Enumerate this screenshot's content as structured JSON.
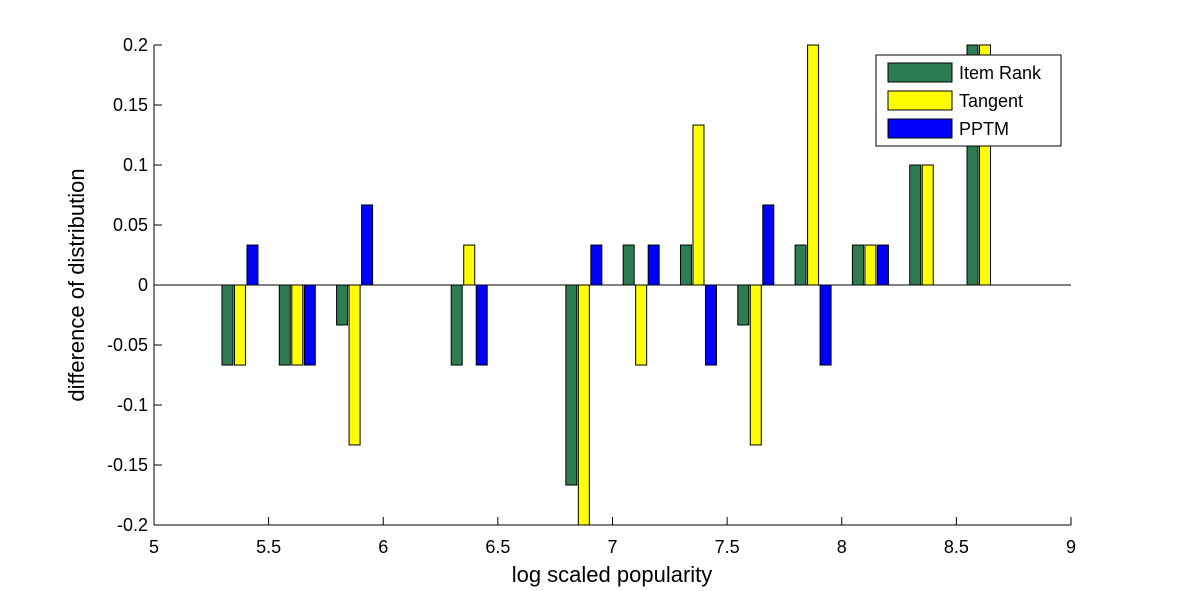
{
  "chart_data": {
    "type": "bar",
    "title": "",
    "xlabel": "log scaled popularity",
    "ylabel": "difference of distribution",
    "xlim": [
      5,
      9
    ],
    "ylim": [
      -0.2,
      0.2
    ],
    "xticks": [
      "5",
      "5.5",
      "6",
      "6.5",
      "7",
      "7.5",
      "8",
      "8.5",
      "9"
    ],
    "yticks": [
      "-0.2",
      "-0.15",
      "-0.1",
      "-0.05",
      "0",
      "0.05",
      "0.1",
      "0.15",
      "0.2"
    ],
    "grid": false,
    "legend_position": "top-right",
    "x": [
      5.375,
      5.625,
      5.875,
      6.375,
      6.875,
      7.125,
      7.375,
      7.625,
      7.875,
      8.125,
      8.375,
      8.625
    ],
    "series": [
      {
        "name": "Item Rank",
        "color": "#2e7d52",
        "values": [
          -0.0667,
          -0.0667,
          -0.0333,
          -0.0667,
          -0.1667,
          0.0333,
          0.0333,
          -0.0333,
          0.0333,
          0.0333,
          0.1,
          0.2
        ]
      },
      {
        "name": "Tangent",
        "color": "#ffff00",
        "values": [
          -0.0667,
          -0.0667,
          -0.1333,
          0.0333,
          -0.2,
          -0.0667,
          0.1333,
          -0.1333,
          0.2,
          0.0333,
          0.1,
          0.2
        ]
      },
      {
        "name": "PPTM",
        "color": "#0000ff",
        "values": [
          0.0333,
          -0.0667,
          0.0667,
          -0.0667,
          0.0333,
          0.0333,
          -0.0667,
          0.0667,
          -0.0667,
          0.0333,
          0,
          0
        ]
      }
    ]
  }
}
